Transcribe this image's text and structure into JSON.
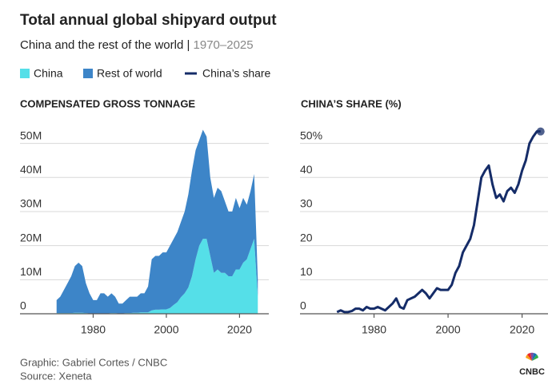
{
  "title": "Total annual global shipyard output",
  "subtitle": "China and the rest of the world |",
  "period": "1970–2025",
  "credit": "Graphic: Gabriel Cortes / CNBC",
  "source": "Source: Xeneta",
  "logo": "CNBC",
  "chart_data": [
    {
      "type": "area",
      "stacked": true,
      "axis_title": "COMPENSATED GROSS TONNAGE",
      "x": [
        1970,
        1971,
        1972,
        1973,
        1974,
        1975,
        1976,
        1977,
        1978,
        1979,
        1980,
        1981,
        1982,
        1983,
        1984,
        1985,
        1986,
        1987,
        1988,
        1989,
        1990,
        1991,
        1992,
        1993,
        1994,
        1995,
        1996,
        1997,
        1998,
        1999,
        2000,
        2001,
        2002,
        2003,
        2004,
        2005,
        2006,
        2007,
        2008,
        2009,
        2010,
        2011,
        2012,
        2013,
        2014,
        2015,
        2016,
        2017,
        2018,
        2019,
        2020,
        2021,
        2022,
        2023,
        2024,
        2025
      ],
      "series": [
        {
          "name": "China",
          "color": "#55dfe8",
          "values": [
            0.2,
            0.2,
            0.2,
            0.2,
            0.2,
            0.3,
            0.3,
            0.3,
            0.2,
            0.1,
            0.1,
            0.1,
            0.1,
            0.1,
            0.1,
            0.2,
            0.2,
            0.1,
            0.1,
            0.2,
            0.2,
            0.3,
            0.3,
            0.4,
            0.4,
            0.4,
            1,
            1.2,
            1.2,
            1.3,
            1.3,
            1.7,
            2.6,
            3.4,
            4.9,
            6,
            7.7,
            11,
            16,
            20,
            22,
            22,
            17,
            12,
            13,
            12,
            12,
            11,
            11,
            13,
            13,
            15,
            16,
            19,
            22,
            5
          ]
        },
        {
          "name": "Rest of world",
          "color": "#3d85c8",
          "values": [
            3.8,
            4.8,
            6.8,
            8.8,
            10.8,
            13.7,
            14.7,
            13.7,
            8.8,
            5.9,
            3.9,
            3.9,
            5.9,
            5.9,
            4.9,
            5.8,
            4.8,
            2.9,
            2.9,
            3.8,
            4.8,
            4.7,
            4.7,
            5.6,
            5.6,
            7.6,
            15,
            15.8,
            15.8,
            16.7,
            16.7,
            18.3,
            19.4,
            20.6,
            22.1,
            24,
            27.3,
            31,
            32,
            31,
            32,
            30,
            23,
            22,
            24,
            24,
            21,
            19,
            19,
            21,
            18,
            19,
            16,
            17,
            19,
            5
          ]
        }
      ],
      "xlim": [
        1960,
        2028
      ],
      "xticks": [
        1980,
        2000,
        2020
      ],
      "ylim": [
        0,
        56
      ],
      "yticks": [
        0,
        {
          "value": 10,
          "label": "10M"
        },
        {
          "value": 20,
          "label": "20M"
        },
        {
          "value": 30,
          "label": "30M"
        },
        {
          "value": 40,
          "label": "40M"
        },
        {
          "value": 50,
          "label": "50M"
        }
      ],
      "grid": true
    },
    {
      "type": "line",
      "axis_title": "CHINA’S SHARE (%)",
      "x": [
        1970,
        1971,
        1972,
        1973,
        1974,
        1975,
        1976,
        1977,
        1978,
        1979,
        1980,
        1981,
        1982,
        1983,
        1984,
        1985,
        1986,
        1987,
        1988,
        1989,
        1990,
        1991,
        1992,
        1993,
        1994,
        1995,
        1996,
        1997,
        1998,
        1999,
        2000,
        2001,
        2002,
        2003,
        2004,
        2005,
        2006,
        2007,
        2008,
        2009,
        2010,
        2011,
        2012,
        2013,
        2014,
        2015,
        2016,
        2017,
        2018,
        2019,
        2020,
        2021,
        2022,
        2023,
        2024,
        2025
      ],
      "series": [
        {
          "name": "China’s share",
          "color": "#152c68",
          "values": [
            0.5,
            1,
            0.5,
            0.5,
            0.8,
            1.5,
            1.5,
            1,
            2,
            1.5,
            1.5,
            2,
            1.5,
            1,
            2,
            3,
            4.5,
            2,
            1.5,
            4,
            4.5,
            5,
            6,
            7,
            6,
            4.5,
            6,
            7.5,
            7,
            7,
            7,
            8.5,
            12,
            14,
            18,
            20,
            22,
            26,
            33,
            40,
            42,
            43.5,
            38,
            34,
            35,
            33,
            36,
            37,
            35.5,
            38,
            42,
            45,
            50,
            52,
            53.5,
            53.5
          ]
        }
      ],
      "xlim": [
        1960,
        2027
      ],
      "xticks": [
        1980,
        2000,
        2020
      ],
      "ylim": [
        0,
        56
      ],
      "yticks": [
        0,
        10,
        20,
        30,
        40,
        {
          "value": 50,
          "label": "50%"
        }
      ],
      "grid": true
    }
  ]
}
